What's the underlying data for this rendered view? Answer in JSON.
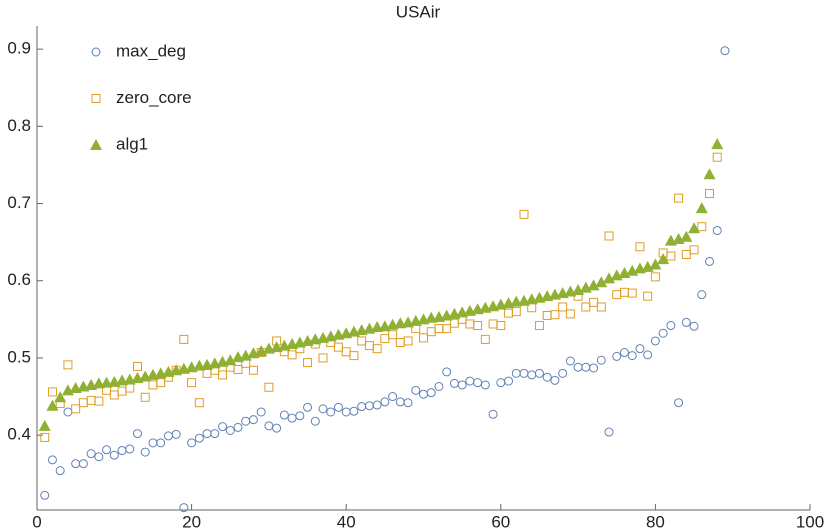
{
  "chart_data": {
    "type": "scatter",
    "title": "USAir",
    "x": [
      1,
      2,
      3,
      4,
      5,
      6,
      7,
      8,
      9,
      10,
      11,
      12,
      13,
      14,
      15,
      16,
      17,
      18,
      19,
      20,
      21,
      22,
      23,
      24,
      25,
      26,
      27,
      28,
      29,
      30,
      31,
      32,
      33,
      34,
      35,
      36,
      37,
      38,
      39,
      40,
      41,
      42,
      43,
      44,
      45,
      46,
      47,
      48,
      49,
      50,
      51,
      52,
      53,
      54,
      55,
      56,
      57,
      58,
      59,
      60,
      61,
      62,
      63,
      64,
      65,
      66,
      67,
      68,
      69,
      70,
      71,
      72,
      73,
      74,
      75,
      76,
      77,
      78,
      79,
      80,
      81,
      82,
      83,
      84,
      85,
      86,
      87,
      88,
      89
    ],
    "series": [
      {
        "name": "max_deg",
        "color": "#5e81b5",
        "marker": "circle",
        "values": [
          0.322,
          0.368,
          0.354,
          0.43,
          0.363,
          0.363,
          0.376,
          0.372,
          0.381,
          0.374,
          0.38,
          0.382,
          0.402,
          0.378,
          0.39,
          0.39,
          0.399,
          0.401,
          0.306,
          0.39,
          0.396,
          0.402,
          0.402,
          0.411,
          0.406,
          0.41,
          0.418,
          0.42,
          0.43,
          0.412,
          0.409,
          0.426,
          0.422,
          0.425,
          0.436,
          0.418,
          0.434,
          0.43,
          0.436,
          0.43,
          0.431,
          0.437,
          0.438,
          0.439,
          0.443,
          0.45,
          0.443,
          0.442,
          0.458,
          0.453,
          0.455,
          0.463,
          0.482,
          0.467,
          0.465,
          0.47,
          0.468,
          0.465,
          0.427,
          0.468,
          0.47,
          0.48,
          0.48,
          0.478,
          0.48,
          0.475,
          0.471,
          0.48,
          0.496,
          0.488,
          0.488,
          0.487,
          0.497,
          0.404,
          0.502,
          0.507,
          0.503,
          0.512,
          0.504,
          0.522,
          0.532,
          0.542,
          0.442,
          0.546,
          0.541,
          0.582,
          0.625,
          0.665,
          0.898
        ]
      },
      {
        "name": "zero_core",
        "color": "#e19c24",
        "marker": "square",
        "values": [
          0.397,
          0.456,
          0.441,
          0.491,
          0.434,
          0.442,
          0.445,
          0.444,
          0.458,
          0.452,
          0.457,
          0.461,
          0.489,
          0.449,
          0.465,
          0.468,
          0.475,
          0.484,
          0.524,
          0.468,
          0.442,
          0.48,
          0.484,
          0.478,
          0.488,
          0.485,
          0.493,
          0.484,
          0.507,
          0.462,
          0.522,
          0.508,
          0.504,
          0.512,
          0.494,
          0.518,
          0.5,
          0.52,
          0.514,
          0.508,
          0.503,
          0.522,
          0.516,
          0.512,
          0.525,
          0.53,
          0.52,
          0.522,
          0.538,
          0.526,
          0.534,
          0.538,
          0.538,
          0.545,
          0.55,
          0.544,
          0.542,
          0.524,
          0.544,
          0.542,
          0.558,
          0.56,
          0.686,
          0.565,
          0.542,
          0.555,
          0.556,
          0.566,
          0.557,
          0.58,
          0.566,
          0.572,
          0.566,
          0.658,
          0.582,
          0.585,
          0.584,
          0.644,
          0.58,
          0.605,
          0.636,
          0.632,
          0.707,
          0.634,
          0.64,
          0.67,
          0.713,
          0.76,
          null
        ]
      },
      {
        "name": "alg1",
        "color": "#8fb032",
        "marker": "triangle",
        "values": [
          0.412,
          0.438,
          0.449,
          0.458,
          0.461,
          0.463,
          0.465,
          0.467,
          0.468,
          0.469,
          0.471,
          0.472,
          0.474,
          0.476,
          0.478,
          0.48,
          0.482,
          0.484,
          0.486,
          0.488,
          0.49,
          0.491,
          0.493,
          0.495,
          0.497,
          0.501,
          0.503,
          0.506,
          0.509,
          0.512,
          0.514,
          0.516,
          0.518,
          0.52,
          0.522,
          0.524,
          0.526,
          0.528,
          0.53,
          0.532,
          0.534,
          0.536,
          0.538,
          0.54,
          0.541,
          0.543,
          0.545,
          0.546,
          0.548,
          0.55,
          0.552,
          0.553,
          0.555,
          0.557,
          0.559,
          0.561,
          0.563,
          0.565,
          0.567,
          0.569,
          0.571,
          0.573,
          0.574,
          0.576,
          0.578,
          0.58,
          0.582,
          0.584,
          0.586,
          0.588,
          0.591,
          0.594,
          0.598,
          0.603,
          0.607,
          0.61,
          0.613,
          0.616,
          0.618,
          0.621,
          0.628,
          0.652,
          0.654,
          0.657,
          0.668,
          0.694,
          0.738,
          0.777,
          null
        ]
      }
    ],
    "xlim": [
      0,
      100
    ],
    "xticks": [
      0,
      20,
      40,
      60,
      80,
      100
    ],
    "ylim": [
      0.303,
      0.93
    ],
    "yticks": [
      0.4,
      0.5,
      0.6,
      0.7,
      0.8,
      0.9
    ],
    "legend": "top-left"
  }
}
